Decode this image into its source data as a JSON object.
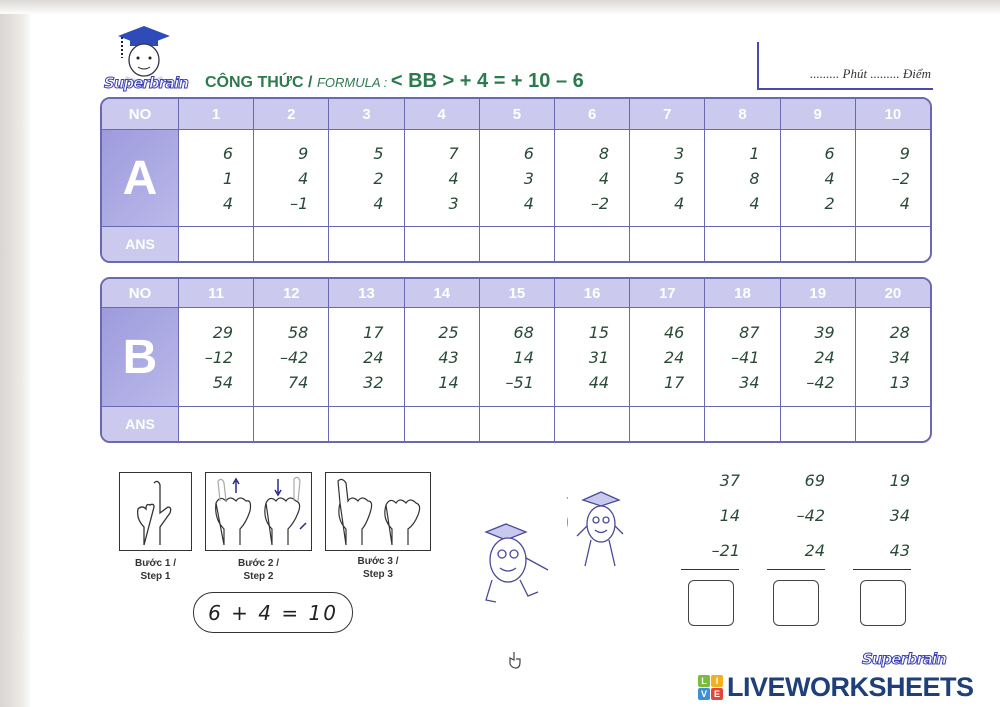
{
  "header": {
    "brand": "Superbrain",
    "formula_label": "CÔNG THỨC / ",
    "formula_label_en": "FORMULA : ",
    "formula": "< BB > + 4 = + 10 – 6",
    "score_text": "......... Phút ......... Điểm"
  },
  "table_a": {
    "header_label": "NO",
    "section_label": "A",
    "answer_label": "ANS",
    "columns": [
      {
        "no": "1",
        "nums": [
          "6",
          "1",
          "4"
        ]
      },
      {
        "no": "2",
        "nums": [
          "9",
          "4",
          "–1"
        ]
      },
      {
        "no": "3",
        "nums": [
          "5",
          "2",
          "4"
        ]
      },
      {
        "no": "4",
        "nums": [
          "7",
          "4",
          "3"
        ]
      },
      {
        "no": "5",
        "nums": [
          "6",
          "3",
          "4"
        ]
      },
      {
        "no": "6",
        "nums": [
          "8",
          "4",
          "–2"
        ]
      },
      {
        "no": "7",
        "nums": [
          "3",
          "5",
          "4"
        ]
      },
      {
        "no": "8",
        "nums": [
          "1",
          "8",
          "4"
        ]
      },
      {
        "no": "9",
        "nums": [
          "6",
          "4",
          "2"
        ]
      },
      {
        "no": "10",
        "nums": [
          "9",
          "–2",
          "4"
        ]
      }
    ]
  },
  "table_b": {
    "header_label": "NO",
    "section_label": "B",
    "answer_label": "ANS",
    "columns": [
      {
        "no": "11",
        "nums": [
          "29",
          "–12",
          "54"
        ]
      },
      {
        "no": "12",
        "nums": [
          "58",
          "–42",
          "74"
        ]
      },
      {
        "no": "13",
        "nums": [
          "17",
          "24",
          "32"
        ]
      },
      {
        "no": "14",
        "nums": [
          "25",
          "43",
          "14"
        ]
      },
      {
        "no": "15",
        "nums": [
          "68",
          "14",
          "–51"
        ]
      },
      {
        "no": "16",
        "nums": [
          "15",
          "31",
          "44"
        ]
      },
      {
        "no": "17",
        "nums": [
          "46",
          "24",
          "17"
        ]
      },
      {
        "no": "18",
        "nums": [
          "87",
          "–41",
          "34"
        ]
      },
      {
        "no": "19",
        "nums": [
          "39",
          "24",
          "–42"
        ]
      },
      {
        "no": "20",
        "nums": [
          "28",
          "34",
          "13"
        ]
      }
    ]
  },
  "steps": [
    {
      "vi": "Bước 1 /",
      "en": "Step 1",
      "icon": "hand-one-finger-icon"
    },
    {
      "vi": "Bước 2 /",
      "en": "Step 2",
      "icon": "hands-fold-fingers-icon"
    },
    {
      "vi": "Bước 3 /",
      "en": "Step 3",
      "icon": "hands-ten-icon"
    }
  ],
  "example": "6 + 4 = 10",
  "extra_problems": [
    {
      "nums": [
        "37",
        "14",
        "–21"
      ]
    },
    {
      "nums": [
        "69",
        "–42",
        "24"
      ]
    },
    {
      "nums": [
        "19",
        "34",
        "43"
      ]
    }
  ],
  "footer": {
    "brand": "Superbrain",
    "watermark": "LIVEWORKSHEETS",
    "watermark_tiles": [
      "L",
      "I",
      "V",
      "E"
    ]
  },
  "colors": {
    "header_row": "#cbcaee",
    "section_label": "#a9a8e0",
    "numbers": "#2a4a38",
    "formula": "#2d7a4e",
    "border": "#6a68b0",
    "watermark": "#1f3f7a"
  }
}
